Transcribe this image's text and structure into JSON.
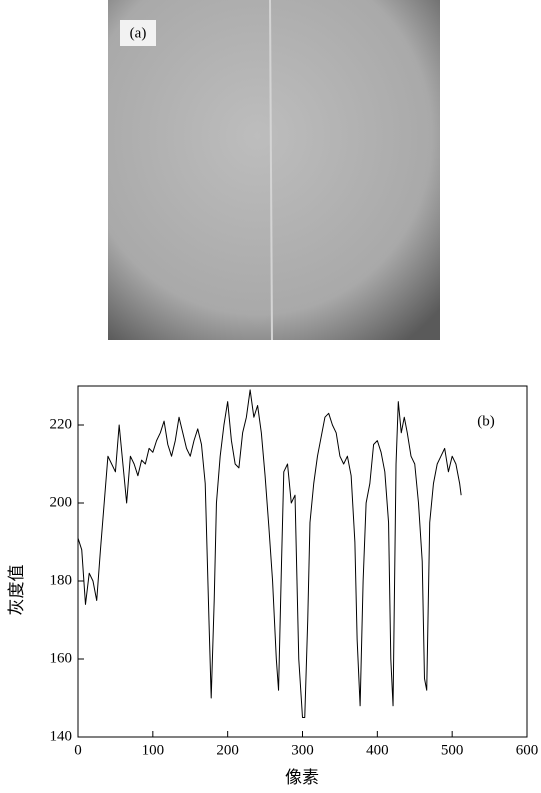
{
  "panel_a": {
    "label": "(a)"
  },
  "chart_data": {
    "type": "line",
    "panel_label": "(b)",
    "xlabel": "像素",
    "ylabel": "灰度值",
    "xlim": [
      0,
      600
    ],
    "ylim": [
      140,
      230
    ],
    "xticks": [
      0,
      100,
      200,
      300,
      400,
      500,
      600
    ],
    "yticks": [
      140,
      160,
      180,
      200,
      220
    ],
    "x": [
      0,
      5,
      10,
      15,
      20,
      25,
      30,
      35,
      40,
      45,
      50,
      55,
      60,
      65,
      70,
      75,
      80,
      85,
      90,
      95,
      100,
      105,
      110,
      115,
      120,
      125,
      130,
      135,
      140,
      145,
      150,
      155,
      160,
      165,
      170,
      175,
      178,
      182,
      185,
      190,
      195,
      200,
      205,
      210,
      215,
      220,
      225,
      230,
      235,
      240,
      245,
      250,
      255,
      260,
      265,
      268,
      272,
      275,
      280,
      285,
      290,
      295,
      300,
      303,
      307,
      310,
      315,
      320,
      325,
      330,
      335,
      340,
      345,
      350,
      355,
      360,
      365,
      370,
      373,
      377,
      381,
      385,
      390,
      395,
      400,
      405,
      410,
      415,
      418,
      421,
      425,
      428,
      432,
      436,
      440,
      445,
      450,
      455,
      460,
      463,
      466,
      470,
      475,
      480,
      485,
      490,
      495,
      500,
      505,
      510,
      512
    ],
    "series": [
      {
        "color": "#000000",
        "values": [
          191,
          188,
          174,
          182,
          180,
          175,
          188,
          200,
          212,
          210,
          208,
          220,
          210,
          200,
          212,
          210,
          207,
          211,
          210,
          214,
          213,
          216,
          218,
          221,
          215,
          212,
          216,
          222,
          218,
          214,
          212,
          216,
          219,
          215,
          205,
          170,
          150,
          175,
          200,
          212,
          220,
          226,
          216,
          210,
          209,
          218,
          222,
          229,
          222,
          225,
          218,
          207,
          194,
          180,
          160,
          152,
          185,
          208,
          210,
          200,
          202,
          160,
          145,
          145,
          170,
          195,
          205,
          212,
          217,
          222,
          223,
          220,
          218,
          212,
          210,
          212,
          207,
          190,
          165,
          148,
          180,
          200,
          205,
          215,
          216,
          213,
          208,
          195,
          160,
          148,
          210,
          226,
          218,
          222,
          218,
          212,
          210,
          200,
          185,
          155,
          152,
          195,
          205,
          210,
          212,
          214,
          208,
          212,
          210,
          205,
          202
        ]
      }
    ]
  }
}
